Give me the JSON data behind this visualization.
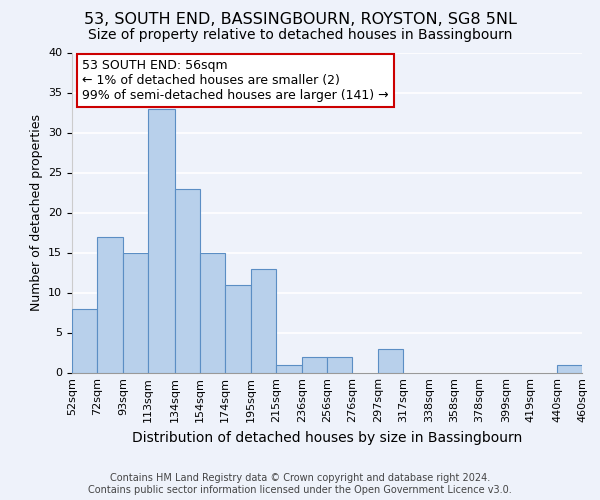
{
  "title": "53, SOUTH END, BASSINGBOURN, ROYSTON, SG8 5NL",
  "subtitle": "Size of property relative to detached houses in Bassingbourn",
  "xlabel": "Distribution of detached houses by size in Bassingbourn",
  "ylabel": "Number of detached properties",
  "footer_line1": "Contains HM Land Registry data © Crown copyright and database right 2024.",
  "footer_line2": "Contains public sector information licensed under the Open Government Licence v3.0.",
  "bin_edges": [
    52,
    72,
    93,
    113,
    134,
    154,
    174,
    195,
    215,
    236,
    256,
    276,
    297,
    317,
    338,
    358,
    378,
    399,
    419,
    440,
    460
  ],
  "bin_labels": [
    "52sqm",
    "72sqm",
    "93sqm",
    "113sqm",
    "134sqm",
    "154sqm",
    "174sqm",
    "195sqm",
    "215sqm",
    "236sqm",
    "256sqm",
    "276sqm",
    "297sqm",
    "317sqm",
    "338sqm",
    "358sqm",
    "378sqm",
    "399sqm",
    "419sqm",
    "440sqm",
    "460sqm"
  ],
  "counts": [
    8,
    17,
    15,
    33,
    23,
    15,
    11,
    13,
    1,
    2,
    2,
    0,
    3,
    0,
    0,
    0,
    0,
    0,
    0,
    1
  ],
  "bar_color": "#b8d0eb",
  "bar_edge_color": "#5b8ec4",
  "annotation_box_color": "#ffffff",
  "annotation_box_edge_color": "#cc0000",
  "annotation_text_line1": "53 SOUTH END: 56sqm",
  "annotation_text_line2": "← 1% of detached houses are smaller (2)",
  "annotation_text_line3": "99% of semi-detached houses are larger (141) →",
  "ylim": [
    0,
    40
  ],
  "yticks": [
    0,
    5,
    10,
    15,
    20,
    25,
    30,
    35,
    40
  ],
  "background_color": "#eef2fa",
  "title_fontsize": 11.5,
  "subtitle_fontsize": 10,
  "xlabel_fontsize": 10,
  "ylabel_fontsize": 9,
  "footer_fontsize": 7,
  "footer_color": "#444444",
  "tick_fontsize": 8,
  "annotation_fontsize": 9
}
